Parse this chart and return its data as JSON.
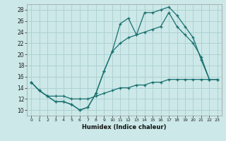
{
  "xlabel": "Humidex (Indice chaleur)",
  "background_color": "#cce8e8",
  "grid_color": "#aacece",
  "line_color": "#1a7070",
  "xlim": [
    -0.5,
    23.5
  ],
  "ylim": [
    9,
    29
  ],
  "xticks": [
    0,
    1,
    2,
    3,
    4,
    5,
    6,
    7,
    8,
    9,
    10,
    11,
    12,
    13,
    14,
    15,
    16,
    17,
    18,
    19,
    20,
    21,
    22,
    23
  ],
  "yticks": [
    10,
    12,
    14,
    16,
    18,
    20,
    22,
    24,
    26,
    28
  ],
  "line1_x": [
    0,
    1,
    2,
    3,
    4,
    5,
    6,
    7,
    8,
    9,
    10,
    11,
    12,
    13,
    14,
    15,
    16,
    17,
    18,
    19,
    20,
    21,
    22,
    23
  ],
  "line1_y": [
    15,
    13.5,
    12.5,
    11.5,
    11.5,
    11.0,
    10.0,
    10.5,
    13.0,
    17.0,
    20.5,
    25.5,
    26.5,
    23.5,
    27.5,
    27.5,
    28.0,
    28.5,
    27.0,
    25.0,
    23.0,
    19.0,
    15.5,
    15.5
  ],
  "line2_x": [
    0,
    1,
    2,
    3,
    4,
    5,
    6,
    7,
    8,
    9,
    10,
    11,
    12,
    13,
    14,
    15,
    16,
    17,
    18,
    19,
    20,
    21,
    22,
    23
  ],
  "line2_y": [
    15,
    13.5,
    12.5,
    11.5,
    11.5,
    11.0,
    10.0,
    10.5,
    13.0,
    17.0,
    20.5,
    22.0,
    23.0,
    23.5,
    24.0,
    24.5,
    25.0,
    27.5,
    25.0,
    23.5,
    22.0,
    19.5,
    15.5,
    15.5
  ],
  "line3_x": [
    0,
    1,
    2,
    3,
    4,
    5,
    6,
    7,
    8,
    9,
    10,
    11,
    12,
    13,
    14,
    15,
    16,
    17,
    18,
    19,
    20,
    21,
    22,
    23
  ],
  "line3_y": [
    15,
    13.5,
    12.5,
    12.5,
    12.5,
    12.0,
    12.0,
    12.0,
    12.5,
    13.0,
    13.5,
    14.0,
    14.0,
    14.5,
    14.5,
    15.0,
    15.0,
    15.5,
    15.5,
    15.5,
    15.5,
    15.5,
    15.5,
    15.5
  ]
}
